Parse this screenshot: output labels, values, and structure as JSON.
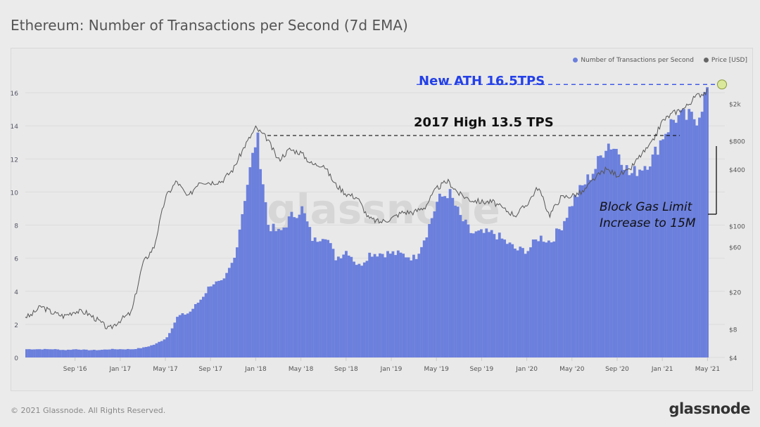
{
  "title": "Ethereum: Number of Transactions per Second (7d EMA)",
  "footer": "© 2021 Glassnode. All Rights Reserved.",
  "brand": "glassnode",
  "watermark": "glassnode",
  "colors": {
    "tps": "#6b7fdc",
    "price": "#555555",
    "ath": "#2340e8",
    "high": "#111111"
  },
  "chart_data": {
    "type": "bar",
    "title": "Ethereum: Number of Transactions per Second (7d EMA)",
    "legend": {
      "placement": "top-right",
      "entries": [
        "Number of Transactions per Second",
        "Price [USD]"
      ]
    },
    "grid": true,
    "x_ticks": [
      "Sep '16",
      "Jan '17",
      "May '17",
      "Sep '17",
      "Jan '18",
      "May '18",
      "Sep '18",
      "Jan '19",
      "May '19",
      "Sep '19",
      "Jan '20",
      "May '20",
      "Sep '20",
      "Jan '21",
      "May '21"
    ],
    "x_tick_dates": [
      "2016-09",
      "2017-01",
      "2017-05",
      "2017-09",
      "2018-01",
      "2018-05",
      "2018-09",
      "2019-01",
      "2019-05",
      "2019-09",
      "2020-01",
      "2020-05",
      "2020-09",
      "2021-01",
      "2021-05"
    ],
    "y_left": {
      "ticks": [
        "0",
        "2",
        "4",
        "6",
        "8",
        "10",
        "12",
        "14",
        "16"
      ],
      "range": [
        0,
        16.6
      ]
    },
    "y_right": {
      "scale": "log",
      "ticks": [
        "$4",
        "$8",
        "$20",
        "$60",
        "$100",
        "$400",
        "$800",
        "$2k"
      ],
      "tick_values": [
        4,
        8,
        20,
        60,
        100,
        400,
        800,
        2000
      ],
      "range": [
        4,
        4200
      ]
    },
    "x": [
      "2016-05",
      "2016-06",
      "2016-07",
      "2016-08",
      "2016-09",
      "2016-10",
      "2016-11",
      "2016-12",
      "2017-01",
      "2017-02",
      "2017-03",
      "2017-04",
      "2017-05",
      "2017-06",
      "2017-07",
      "2017-08",
      "2017-09",
      "2017-10",
      "2017-11",
      "2017-12",
      "2018-01",
      "2018-02",
      "2018-03",
      "2018-04",
      "2018-05",
      "2018-06",
      "2018-07",
      "2018-08",
      "2018-09",
      "2018-10",
      "2018-11",
      "2018-12",
      "2019-01",
      "2019-02",
      "2019-03",
      "2019-04",
      "2019-05",
      "2019-06",
      "2019-07",
      "2019-08",
      "2019-09",
      "2019-10",
      "2019-11",
      "2019-12",
      "2020-01",
      "2020-02",
      "2020-03",
      "2020-04",
      "2020-05",
      "2020-06",
      "2020-07",
      "2020-08",
      "2020-09",
      "2020-10",
      "2020-11",
      "2020-12",
      "2021-01",
      "2021-02",
      "2021-03",
      "2021-04",
      "2021-05"
    ],
    "series": [
      {
        "name": "Number of Transactions per Second",
        "type": "bar",
        "axis": "left",
        "values": [
          0.5,
          0.5,
          0.5,
          0.45,
          0.5,
          0.45,
          0.45,
          0.5,
          0.5,
          0.5,
          0.6,
          0.8,
          1.2,
          2.5,
          2.7,
          3.5,
          4.5,
          4.5,
          6,
          10,
          13.5,
          8,
          7.5,
          8.5,
          9,
          7,
          7.5,
          6,
          6.5,
          5.5,
          6.3,
          6.3,
          6.3,
          6.2,
          6,
          7.5,
          9.5,
          10,
          8.5,
          7.5,
          7.5,
          7.5,
          7,
          6.5,
          6.5,
          7.3,
          7,
          8,
          9.5,
          10.5,
          11.5,
          13,
          12.5,
          11,
          11.5,
          12,
          13.5,
          14.5,
          14.5,
          14.5,
          16.5
        ]
      },
      {
        "name": "Price [USD]",
        "type": "line",
        "axis": "right",
        "values": [
          11,
          14,
          12,
          11,
          12.5,
          12,
          10,
          8,
          10,
          12,
          40,
          60,
          200,
          300,
          200,
          300,
          290,
          300,
          400,
          700,
          1100,
          850,
          500,
          650,
          600,
          450,
          450,
          280,
          220,
          200,
          120,
          110,
          120,
          140,
          140,
          160,
          250,
          300,
          220,
          190,
          180,
          180,
          150,
          130,
          170,
          260,
          130,
          200,
          210,
          230,
          320,
          400,
          350,
          380,
          550,
          730,
          1300,
          1600,
          1800,
          2400,
          2700
        ]
      }
    ],
    "annotations": [
      {
        "text": "New ATH 16.5TPS",
        "value": 16.5
      },
      {
        "text": "2017 High 13.5 TPS",
        "value": 13.5
      },
      {
        "text": "Block Gas Limit Increase to 15M",
        "date": "2021-05"
      }
    ]
  }
}
